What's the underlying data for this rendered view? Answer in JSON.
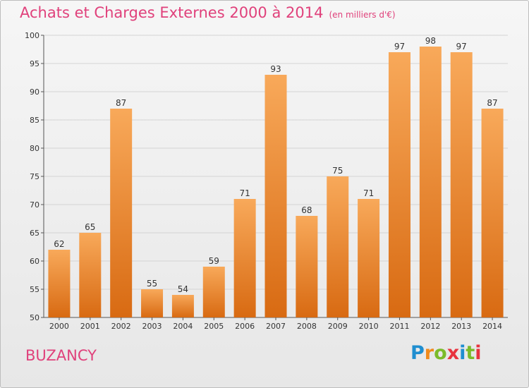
{
  "header": {
    "title": "Achats et Charges Externes 2000 à 2014",
    "unit": "(en milliers d'€)"
  },
  "commune": "BUZANCY",
  "logo": {
    "letters": [
      "P",
      "r",
      "o",
      "x",
      "i",
      "t",
      "i"
    ],
    "colors": [
      "#1f8ed0",
      "#f08a1c",
      "#7bbb2a",
      "#e8333e",
      "#1f8ed0",
      "#7bbb2a",
      "#e8333e"
    ]
  },
  "colors": {
    "bar_top": "#f8a95a",
    "bar_bottom": "#d86a12",
    "title": "#e0417b",
    "grid": "#d4d4d4"
  },
  "chart_data": {
    "type": "bar",
    "categories": [
      "2000",
      "2001",
      "2002",
      "2003",
      "2004",
      "2005",
      "2006",
      "2007",
      "2008",
      "2009",
      "2010",
      "2011",
      "2012",
      "2013",
      "2014"
    ],
    "values": [
      62,
      65,
      87,
      55,
      54,
      59,
      71,
      93,
      68,
      75,
      71,
      97,
      98,
      97,
      87
    ],
    "title": "Achats et Charges Externes 2000 à 2014",
    "ylim": [
      50,
      100
    ],
    "yticks": [
      50,
      55,
      60,
      65,
      70,
      75,
      80,
      85,
      90,
      95,
      100
    ],
    "grid": true,
    "data_labels": true
  }
}
